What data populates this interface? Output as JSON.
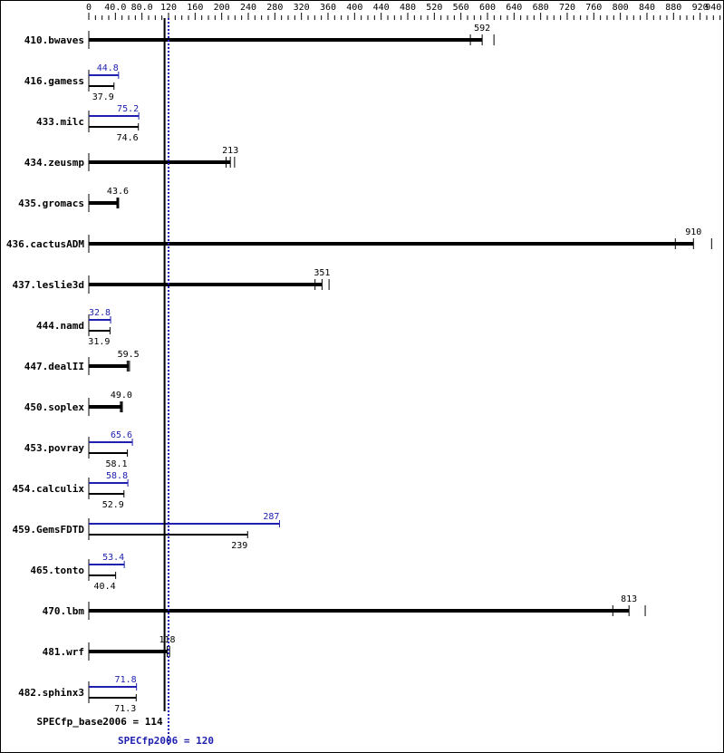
{
  "chart_data": {
    "type": "bar",
    "orientation": "horizontal",
    "xlim": [
      0,
      950
    ],
    "ticks": [
      "0",
      "40.0",
      "80.0",
      "120",
      "160",
      "200",
      "240",
      "280",
      "320",
      "360",
      "400",
      "440",
      "480",
      "520",
      "560",
      "600",
      "640",
      "680",
      "720",
      "760",
      "800",
      "840",
      "880",
      "920",
      "940"
    ],
    "tick_values": [
      0,
      40,
      80,
      120,
      160,
      200,
      240,
      280,
      320,
      360,
      400,
      440,
      480,
      520,
      560,
      600,
      640,
      680,
      720,
      760,
      800,
      840,
      880,
      920,
      940
    ],
    "colors": {
      "base": "#000000",
      "peak": "#2020b0"
    },
    "benchmarks": [
      {
        "name": "410.bwaves",
        "base": 592,
        "peak": null
      },
      {
        "name": "416.gamess",
        "base": 37.9,
        "peak": 44.8
      },
      {
        "name": "433.milc",
        "base": 74.6,
        "peak": 75.2
      },
      {
        "name": "434.zeusmp",
        "base": 213,
        "peak": null
      },
      {
        "name": "435.gromacs",
        "base": 43.6,
        "peak": null
      },
      {
        "name": "436.cactusADM",
        "base": 910,
        "peak": null
      },
      {
        "name": "437.leslie3d",
        "base": 351,
        "peak": null
      },
      {
        "name": "444.namd",
        "base": 31.9,
        "peak": 32.8
      },
      {
        "name": "447.dealII",
        "base": 59.5,
        "peak": null
      },
      {
        "name": "450.soplex",
        "base": 49.0,
        "peak": null
      },
      {
        "name": "453.povray",
        "base": 58.1,
        "peak": 65.6
      },
      {
        "name": "454.calculix",
        "base": 52.9,
        "peak": 58.8
      },
      {
        "name": "459.GemsFDTD",
        "base": 239,
        "peak": 287
      },
      {
        "name": "465.tonto",
        "base": 40.4,
        "peak": 53.4
      },
      {
        "name": "470.lbm",
        "base": 813,
        "peak": null
      },
      {
        "name": "481.wrf",
        "base": 118,
        "peak": null
      },
      {
        "name": "482.sphinx3",
        "base": 71.3,
        "peak": 71.8
      }
    ],
    "summary": {
      "base_label": "SPECfp_base2006 = 114",
      "base_value": 114,
      "peak_label": "SPECfp2006 = 120",
      "peak_value": 120
    }
  }
}
